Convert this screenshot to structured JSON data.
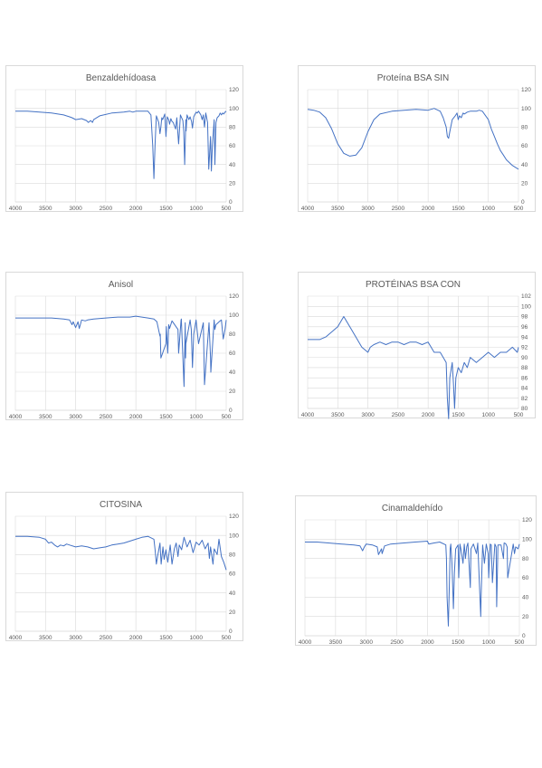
{
  "chart_data": [
    {
      "type": "line",
      "title": "Benzaldehídoasa",
      "xlim": [
        4000,
        500
      ],
      "ylim": [
        0,
        120
      ],
      "x_ticks": [
        "4000",
        "3500",
        "3000",
        "2500",
        "2000",
        "1500",
        "1000",
        "500"
      ],
      "y_ticks": [
        "0",
        "20",
        "40",
        "60",
        "80",
        "100",
        "120"
      ],
      "series": [
        {
          "x": [
            4000,
            3800,
            3600,
            3400,
            3200,
            3100,
            3060,
            3030,
            3000,
            2900,
            2820,
            2790,
            2750,
            2720,
            2700,
            2600,
            2400,
            2200,
            2100,
            2050,
            2000,
            1900,
            1800,
            1750,
            1720,
            1700,
            1680,
            1660,
            1620,
            1600,
            1585,
            1570,
            1555,
            1520,
            1500,
            1480,
            1455,
            1440,
            1420,
            1400,
            1380,
            1340,
            1320,
            1310,
            1290,
            1260,
            1220,
            1205,
            1190,
            1170,
            1165,
            1150,
            1120,
            1100,
            1075,
            1060,
            1040,
            1024,
            1000,
            980,
            960,
            940,
            920,
            900,
            880,
            860,
            840,
            830,
            810,
            790,
            760,
            746,
            730,
            700,
            688,
            670,
            650,
            620,
            600,
            580,
            560,
            540,
            520,
            500
          ],
          "values": [
            97,
            97,
            96,
            95,
            93,
            91,
            90,
            89,
            88,
            89,
            87,
            85,
            87,
            85,
            88,
            92,
            95,
            96,
            97,
            96,
            97,
            97,
            97,
            93,
            60,
            25,
            62,
            92,
            85,
            73,
            80,
            90,
            88,
            94,
            70,
            91,
            88,
            83,
            89,
            86,
            85,
            78,
            90,
            80,
            62,
            93,
            87,
            75,
            40,
            88,
            76,
            93,
            88,
            91,
            86,
            79,
            91,
            93,
            96,
            95,
            97,
            95,
            93,
            88,
            93,
            80,
            95,
            92,
            85,
            35,
            70,
            33,
            60,
            88,
            40,
            85,
            90,
            92,
            95,
            93,
            95,
            94,
            96,
            97
          ]
        }
      ]
    },
    {
      "type": "line",
      "title": "Proteína BSA SIN",
      "xlim": [
        4000,
        500
      ],
      "ylim": [
        0,
        120
      ],
      "x_ticks": [
        "4000",
        "3500",
        "3000",
        "2500",
        "2000",
        "1500",
        "1000",
        "500"
      ],
      "y_ticks": [
        "0",
        "20",
        "40",
        "60",
        "80",
        "100",
        "120"
      ],
      "series": [
        {
          "x": [
            4000,
            3900,
            3800,
            3700,
            3600,
            3500,
            3400,
            3300,
            3200,
            3100,
            3000,
            2900,
            2800,
            2600,
            2400,
            2200,
            2000,
            1900,
            1800,
            1750,
            1700,
            1680,
            1660,
            1640,
            1600,
            1550,
            1520,
            1500,
            1480,
            1450,
            1420,
            1400,
            1350,
            1300,
            1250,
            1200,
            1150,
            1100,
            1000,
            950,
            900,
            850,
            800,
            750,
            700,
            650,
            600,
            550,
            500
          ],
          "values": [
            99,
            98,
            96,
            90,
            78,
            62,
            52,
            49,
            50,
            58,
            75,
            88,
            94,
            97,
            98,
            99,
            98,
            100,
            97,
            90,
            80,
            70,
            68,
            75,
            88,
            92,
            95,
            88,
            92,
            90,
            95,
            94,
            96,
            97,
            97,
            97,
            98,
            97,
            88,
            78,
            70,
            62,
            55,
            50,
            45,
            42,
            39,
            37,
            35
          ]
        }
      ]
    },
    {
      "type": "line",
      "title": "Anisol",
      "xlim": [
        4000,
        500
      ],
      "ylim": [
        0,
        120
      ],
      "x_ticks": [
        "4000",
        "3500",
        "3000",
        "2500",
        "2000",
        "1500",
        "1000",
        "500"
      ],
      "y_ticks": [
        "0",
        "20",
        "40",
        "60",
        "80",
        "100",
        "120"
      ],
      "series": [
        {
          "x": [
            4000,
            3800,
            3600,
            3400,
            3200,
            3100,
            3060,
            3040,
            3000,
            2960,
            2940,
            2900,
            2840,
            2800,
            2700,
            2500,
            2300,
            2100,
            2000,
            1900,
            1800,
            1700,
            1650,
            1600,
            1595,
            1585,
            1500,
            1495,
            1470,
            1455,
            1440,
            1400,
            1300,
            1290,
            1250,
            1245,
            1200,
            1180,
            1175,
            1170,
            1100,
            1080,
            1060,
            1040,
            1000,
            960,
            880,
            860,
            785,
            760,
            755,
            700,
            690,
            670,
            600,
            580,
            550,
            520,
            500
          ],
          "values": [
            97,
            97,
            97,
            97,
            96,
            95,
            90,
            93,
            87,
            93,
            86,
            95,
            94,
            95,
            96,
            97,
            98,
            98,
            99,
            98,
            97,
            96,
            93,
            78,
            80,
            55,
            70,
            88,
            60,
            90,
            86,
            94,
            85,
            60,
            95,
            96,
            25,
            92,
            55,
            70,
            95,
            85,
            45,
            80,
            95,
            70,
            92,
            27,
            92,
            55,
            40,
            95,
            85,
            90,
            94,
            95,
            75,
            85,
            95
          ]
        }
      ]
    },
    {
      "type": "line",
      "title": "PROTÉINAS BSA CON",
      "xlim": [
        4000,
        500
      ],
      "ylim": [
        80,
        102
      ],
      "x_ticks": [
        "4000",
        "3500",
        "3000",
        "2500",
        "2000",
        "1500",
        "1000",
        "500"
      ],
      "y_ticks": [
        "80",
        "82",
        "84",
        "86",
        "88",
        "90",
        "92",
        "94",
        "96",
        "98",
        "100",
        "102"
      ],
      "series": [
        {
          "x": [
            4000,
            3800,
            3700,
            3600,
            3500,
            3400,
            3300,
            3200,
            3100,
            3000,
            2960,
            2900,
            2800,
            2700,
            2600,
            2500,
            2400,
            2300,
            2200,
            2100,
            2000,
            1900,
            1800,
            1700,
            1680,
            1660,
            1640,
            1600,
            1580,
            1560,
            1540,
            1500,
            1450,
            1400,
            1350,
            1300,
            1200,
            1100,
            1000,
            900,
            800,
            700,
            600,
            520,
            500
          ],
          "values": [
            93.5,
            93.5,
            94,
            95,
            96,
            98,
            96,
            94,
            92,
            91,
            92,
            92.5,
            93,
            92.5,
            93,
            93,
            92.5,
            93,
            93,
            92.5,
            93,
            91,
            91,
            89,
            82,
            78,
            86,
            89,
            85,
            80,
            86,
            88,
            87,
            89,
            88,
            90,
            89,
            90,
            91,
            90,
            91,
            91,
            92,
            91,
            92
          ]
        }
      ]
    },
    {
      "type": "line",
      "title": "CITOSINA",
      "xlim": [
        4000,
        500
      ],
      "ylim": [
        0,
        120
      ],
      "x_ticks": [
        "4000",
        "3500",
        "3000",
        "2500",
        "2000",
        "1500",
        "1000",
        "500"
      ],
      "y_ticks": [
        "0",
        "20",
        "40",
        "60",
        "80",
        "100",
        "120"
      ],
      "series": [
        {
          "x": [
            4000,
            3800,
            3600,
            3500,
            3450,
            3400,
            3350,
            3300,
            3250,
            3200,
            3150,
            3100,
            3000,
            2900,
            2800,
            2700,
            2600,
            2500,
            2400,
            2300,
            2200,
            2100,
            2000,
            1900,
            1800,
            1700,
            1680,
            1660,
            1640,
            1600,
            1580,
            1550,
            1530,
            1500,
            1470,
            1430,
            1400,
            1360,
            1330,
            1300,
            1280,
            1240,
            1200,
            1150,
            1100,
            1050,
            1000,
            950,
            900,
            850,
            800,
            780,
            760,
            720,
            700,
            650,
            620,
            580,
            540,
            500
          ],
          "values": [
            99,
            99,
            98,
            96,
            92,
            93,
            90,
            88,
            90,
            89,
            91,
            90,
            88,
            89,
            88,
            86,
            87,
            88,
            90,
            91,
            92,
            94,
            96,
            98,
            99,
            96,
            85,
            70,
            78,
            92,
            70,
            88,
            75,
            85,
            72,
            90,
            70,
            86,
            92,
            78,
            90,
            85,
            98,
            88,
            95,
            82,
            93,
            90,
            95,
            86,
            92,
            76,
            88,
            70,
            86,
            80,
            96,
            78,
            72,
            64
          ]
        }
      ]
    },
    {
      "type": "line",
      "title": "Cinamaldehído",
      "xlim": [
        4000,
        500
      ],
      "ylim": [
        0,
        120
      ],
      "x_ticks": [
        "4000",
        "3500",
        "3000",
        "2500",
        "2000",
        "1500",
        "1000",
        "500"
      ],
      "y_ticks": [
        "0",
        "20",
        "40",
        "60",
        "80",
        "100",
        "120"
      ],
      "series": [
        {
          "x": [
            4000,
            3800,
            3600,
            3400,
            3200,
            3100,
            3060,
            3030,
            3000,
            2900,
            2820,
            2800,
            2750,
            2740,
            2700,
            2600,
            2400,
            2200,
            2000,
            1980,
            1900,
            1800,
            1700,
            1690,
            1680,
            1660,
            1640,
            1630,
            1620,
            1600,
            1576,
            1560,
            1540,
            1500,
            1490,
            1470,
            1450,
            1420,
            1400,
            1380,
            1360,
            1340,
            1300,
            1290,
            1250,
            1200,
            1180,
            1130,
            1124,
            1100,
            1070,
            1040,
            1010,
            1000,
            975,
            960,
            940,
            900,
            880,
            870,
            860,
            850,
            800,
            760,
            750,
            740,
            720,
            700,
            690,
            600,
            580,
            560,
            520,
            500
          ],
          "values": [
            97,
            97,
            96,
            95,
            94,
            93,
            88,
            92,
            95,
            94,
            92,
            84,
            90,
            85,
            93,
            95,
            96,
            97,
            98,
            95,
            96,
            97,
            94,
            80,
            40,
            10,
            60,
            90,
            95,
            75,
            28,
            65,
            90,
            94,
            60,
            95,
            88,
            75,
            95,
            80,
            92,
            96,
            50,
            90,
            95,
            85,
            96,
            20,
            40,
            94,
            75,
            95,
            85,
            60,
            95,
            94,
            55,
            95,
            92,
            30,
            60,
            94,
            94,
            80,
            96,
            96,
            95,
            92,
            60,
            95,
            85,
            92,
            90,
            95
          ]
        }
      ]
    }
  ]
}
